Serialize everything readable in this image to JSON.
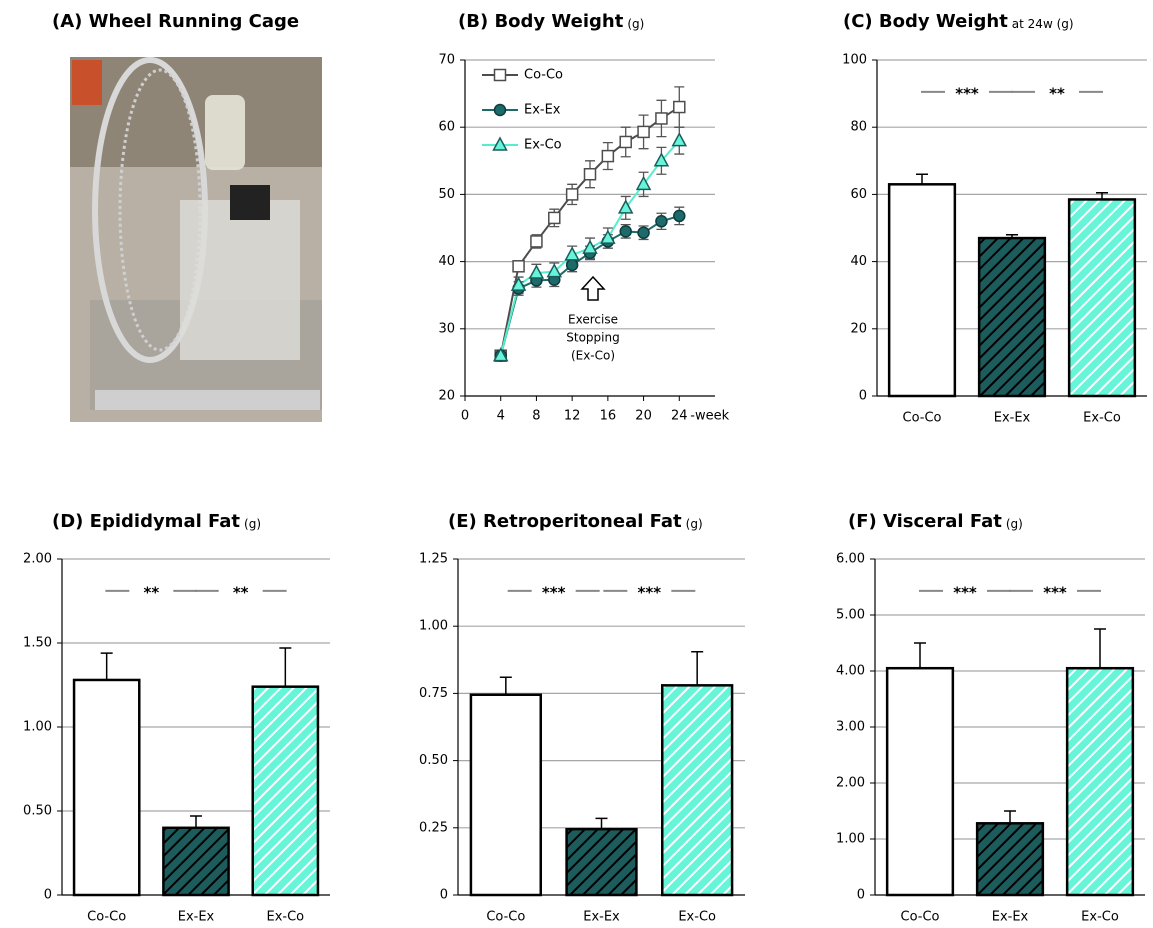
{
  "photo": {
    "title": "(A) Wheel Running Cage"
  },
  "chart_data": [
    {
      "type": "line",
      "title": "(B) Body Weight",
      "title_unit": "(g)",
      "xlabel": "-week",
      "x": [
        4,
        6,
        8,
        10,
        12,
        14,
        16,
        18,
        20,
        22,
        24
      ],
      "series": [
        {
          "name": "Co-Co",
          "color": "#4d4d4d",
          "marker": "square",
          "marker_fill": "#ffffff",
          "marker_stroke": "#4d4d4d",
          "values": [
            26,
            39.3,
            43,
            46.5,
            50,
            53,
            55.7,
            57.8,
            59.3,
            61.3,
            63
          ],
          "errors": [
            0.5,
            0.8,
            1,
            1.3,
            1.5,
            2,
            2,
            2.2,
            2.5,
            2.7,
            3
          ]
        },
        {
          "name": "Ex-Ex",
          "color": "#1d6a6a",
          "marker": "circle",
          "marker_fill": "#1d6a6a",
          "marker_stroke": "#0f3d3d",
          "values": [
            26,
            36,
            37.2,
            37.3,
            39.5,
            41.3,
            43,
            44.5,
            44.3,
            46,
            46.8
          ],
          "errors": [
            0.5,
            1,
            1,
            1,
            1,
            1,
            1,
            1,
            1,
            1.2,
            1.3
          ]
        },
        {
          "name": "Ex-Co",
          "color": "#55eecc",
          "marker": "triangle",
          "marker_fill": "#66f5d8",
          "marker_stroke": "#1d5c5c",
          "values": [
            26,
            36.5,
            38.3,
            38.5,
            41,
            42,
            43.5,
            48,
            51.5,
            55,
            58
          ],
          "errors": [
            0.5,
            1.2,
            1.3,
            1.3,
            1.3,
            1.5,
            1.5,
            1.7,
            1.8,
            2,
            2
          ]
        }
      ],
      "xlim": [
        0,
        28
      ],
      "xticks": [
        0,
        4,
        8,
        12,
        16,
        20,
        24
      ],
      "ylim": [
        20,
        70
      ],
      "yticks": [
        20,
        30,
        40,
        50,
        60,
        70
      ],
      "grid": true,
      "legend": "upper left",
      "annotation": [
        "Exercise",
        "Stopping",
        "(Ex-Co)"
      ]
    },
    {
      "type": "bar",
      "title": "(C) Body Weight",
      "title_unit": "at 24w (g)",
      "categories": [
        "Co-Co",
        "Ex-Ex",
        "Ex-Co"
      ],
      "values": [
        63,
        47,
        58.5
      ],
      "errors": [
        3,
        1,
        2
      ],
      "colors": [
        "#ffffff",
        "#1d5c5c",
        "#66f5d8"
      ],
      "hatch_colors": [
        null,
        "#000000",
        "#ffffff"
      ],
      "ylim": [
        0,
        100
      ],
      "yticks": [
        0,
        20,
        40,
        60,
        80,
        100
      ],
      "grid": true,
      "significance": [
        "***",
        "**"
      ]
    },
    {
      "type": "bar",
      "title": "(D) Epididymal Fat",
      "title_unit": "(g)",
      "categories": [
        "Co-Co",
        "Ex-Ex",
        "Ex-Co"
      ],
      "values": [
        1.28,
        0.4,
        1.24
      ],
      "errors": [
        0.16,
        0.07,
        0.23
      ],
      "colors": [
        "#ffffff",
        "#1d5c5c",
        "#66f5d8"
      ],
      "hatch_colors": [
        null,
        "#000000",
        "#ffffff"
      ],
      "ylim": [
        0,
        2
      ],
      "yticks": [
        0,
        {
          "value": 0.5,
          "label": "0.50"
        },
        {
          "value": 1,
          "label": "1.00"
        },
        {
          "value": 1.5,
          "label": "1.50"
        },
        {
          "value": 2,
          "label": "2.00"
        }
      ],
      "grid": true,
      "significance": [
        "**",
        "**"
      ]
    },
    {
      "type": "bar",
      "title": "(E) Retroperitoneal Fat",
      "title_unit": "(g)",
      "categories": [
        "Co-Co",
        "Ex-Ex",
        "Ex-Co"
      ],
      "values": [
        0.745,
        0.245,
        0.78
      ],
      "errors": [
        0.065,
        0.04,
        0.125
      ],
      "colors": [
        "#ffffff",
        "#1d5c5c",
        "#66f5d8"
      ],
      "hatch_colors": [
        null,
        "#000000",
        "#ffffff"
      ],
      "ylim": [
        0,
        1.25
      ],
      "yticks": [
        0,
        0.25,
        {
          "value": 0.5,
          "label": "0.50"
        },
        0.75,
        {
          "value": 1,
          "label": "1.00"
        },
        1.25
      ],
      "grid": true,
      "significance": [
        "***",
        "***"
      ]
    },
    {
      "type": "bar",
      "title": "(F) Visceral Fat",
      "title_unit": "(g)",
      "categories": [
        "Co-Co",
        "Ex-Ex",
        "Ex-Co"
      ],
      "values": [
        4.05,
        1.28,
        4.05
      ],
      "errors": [
        0.45,
        0.22,
        0.7
      ],
      "colors": [
        "#ffffff",
        "#1d5c5c",
        "#66f5d8"
      ],
      "hatch_colors": [
        null,
        "#000000",
        "#ffffff"
      ],
      "ylim": [
        0,
        6
      ],
      "yticks": [
        0,
        {
          "value": 1,
          "label": "1.00"
        },
        {
          "value": 2,
          "label": "2.00"
        },
        {
          "value": 3,
          "label": "3.00"
        },
        {
          "value": 4,
          "label": "4.00"
        },
        {
          "value": 5,
          "label": "5.00"
        },
        {
          "value": 6,
          "label": "6.00"
        }
      ],
      "grid": true,
      "significance": [
        "***",
        "***"
      ]
    }
  ]
}
